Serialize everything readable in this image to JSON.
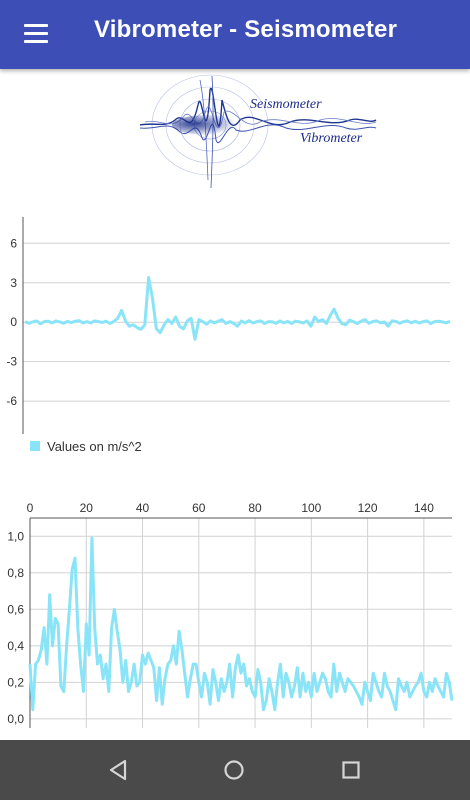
{
  "app_bar": {
    "title": "Vibrometer - Seismometer",
    "menu_icon": "hamburger-menu-icon",
    "color": "#3d4fb6"
  },
  "logo": {
    "text_line1": "Seismometer",
    "text_line2": "Vibrometer"
  },
  "chart_data": [
    {
      "type": "line",
      "title": "",
      "ylabel": "",
      "xlabel": "",
      "yticks": [
        "6",
        "3",
        "0",
        "-3",
        "-6"
      ],
      "ylim": [
        -8.5,
        8
      ],
      "grid": true,
      "legend_position": "bottom-left",
      "series": [
        {
          "name": "Values on m/s^2",
          "color": "#8ae4f7",
          "values": [
            0.05,
            -0.08,
            0.02,
            0.1,
            -0.12,
            0.05,
            0.08,
            -0.05,
            0.1,
            0.02,
            -0.08,
            0.06,
            -0.03,
            0.08,
            0.12,
            -0.05,
            0.04,
            -0.06,
            0.1,
            0.05,
            -0.02,
            0.08,
            -0.1,
            0.06,
            0.3,
            0.9,
            0.1,
            -0.3,
            -0.2,
            -0.4,
            -0.55,
            -0.2,
            3.4,
            1.8,
            -0.5,
            -0.8,
            -0.2,
            0.2,
            -0.1,
            0.4,
            -0.3,
            -0.5,
            0.1,
            0.3,
            -1.3,
            0.2,
            0.05,
            -0.15,
            0.1,
            -0.05,
            0.08,
            0.2,
            -0.1,
            0.05,
            -0.08,
            -0.3,
            0.1,
            -0.05,
            0.12,
            -0.06,
            0.04,
            0.1,
            -0.1,
            0.05,
            0.02,
            -0.08,
            0.1,
            -0.05,
            0.06,
            -0.1,
            0.08,
            0.02,
            -0.05,
            0.1,
            -0.3,
            0.4,
            0.05,
            0.2,
            -0.1,
            0.5,
            1.0,
            0.3,
            -0.1,
            -0.2,
            0.15,
            0.05,
            -0.1,
            0.08,
            0.2,
            -0.08,
            0.05,
            0.1,
            -0.05,
            0.02,
            -0.3,
            0.1,
            0.06,
            -0.08,
            0.05,
            0.1,
            -0.05,
            0.08,
            -0.06,
            0.04,
            0.1,
            -0.1,
            0.05,
            0.08,
            0.02,
            -0.05,
            0.06
          ]
        }
      ]
    },
    {
      "type": "line",
      "title": "",
      "xlabel": "",
      "ylabel": "",
      "xlim": [
        0,
        150
      ],
      "ylim": [
        -0.05,
        1.1
      ],
      "xticks": [
        "0",
        "20",
        "40",
        "60",
        "80",
        "100",
        "120",
        "140"
      ],
      "yticks": [
        "1,0",
        "0,8",
        "0,6",
        "0,4",
        "0,2",
        "0,0"
      ],
      "x_axis_position": "top",
      "grid": true,
      "series": [
        {
          "color": "#8ae4f7",
          "values": [
            0.3,
            0.05,
            0.3,
            0.32,
            0.38,
            0.5,
            0.3,
            0.68,
            0.4,
            0.55,
            0.52,
            0.18,
            0.15,
            0.4,
            0.6,
            0.82,
            0.88,
            0.5,
            0.3,
            0.15,
            0.52,
            0.35,
            0.99,
            0.5,
            0.3,
            0.35,
            0.22,
            0.3,
            0.15,
            0.5,
            0.6,
            0.48,
            0.38,
            0.2,
            0.32,
            0.15,
            0.2,
            0.3,
            0.18,
            0.2,
            0.35,
            0.3,
            0.36,
            0.32,
            0.28,
            0.1,
            0.28,
            0.08,
            0.22,
            0.3,
            0.32,
            0.4,
            0.3,
            0.48,
            0.38,
            0.25,
            0.12,
            0.22,
            0.3,
            0.3,
            0.2,
            0.12,
            0.25,
            0.2,
            0.08,
            0.27,
            0.2,
            0.1,
            0.22,
            0.15,
            0.2,
            0.3,
            0.12,
            0.28,
            0.35,
            0.25,
            0.3,
            0.18,
            0.22,
            0.15,
            0.12,
            0.27,
            0.2,
            0.05,
            0.1,
            0.22,
            0.15,
            0.05,
            0.2,
            0.3,
            0.12,
            0.25,
            0.2,
            0.12,
            0.18,
            0.28,
            0.12,
            0.25,
            0.15,
            0.2,
            0.12,
            0.25,
            0.15,
            0.2,
            0.25,
            0.22,
            0.15,
            0.12,
            0.3,
            0.15,
            0.25,
            0.2,
            0.15,
            0.22,
            0.2,
            0.18,
            0.15,
            0.12,
            0.08,
            0.2,
            0.15,
            0.1,
            0.25,
            0.2,
            0.15,
            0.12,
            0.25,
            0.18,
            0.15,
            0.1,
            0.05,
            0.22,
            0.18,
            0.15,
            0.2,
            0.12,
            0.15,
            0.18,
            0.2,
            0.25,
            0.15,
            0.12,
            0.2,
            0.15,
            0.22,
            0.18,
            0.15,
            0.12,
            0.25,
            0.2,
            0.1
          ]
        }
      ]
    }
  ],
  "nav_bar": {
    "back_icon": "back-triangle-icon",
    "home_icon": "home-circle-icon",
    "recents_icon": "recents-square-icon"
  }
}
